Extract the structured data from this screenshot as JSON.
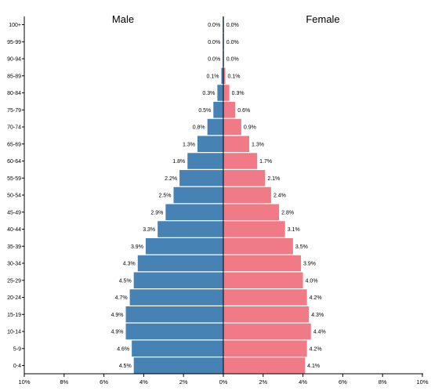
{
  "chart_data": {
    "type": "bar",
    "orientation": "horizontal-population-pyramid",
    "categories": [
      "0-4",
      "5-9",
      "10-14",
      "15-19",
      "20-24",
      "25-29",
      "30-34",
      "35-39",
      "40-44",
      "45-49",
      "50-54",
      "55-59",
      "60-64",
      "65-69",
      "70-74",
      "75-79",
      "80-84",
      "85-89",
      "90-94",
      "95-99",
      "100+"
    ],
    "series": [
      {
        "name": "Male",
        "color": "#4682b4",
        "values": [
          4.5,
          4.6,
          4.9,
          4.9,
          4.7,
          4.5,
          4.3,
          3.9,
          3.3,
          2.9,
          2.5,
          2.2,
          1.8,
          1.3,
          0.8,
          0.5,
          0.3,
          0.1,
          0.0,
          0.0,
          0.0
        ]
      },
      {
        "name": "Female",
        "color": "#f07b86",
        "values": [
          4.1,
          4.2,
          4.4,
          4.3,
          4.2,
          4.0,
          3.9,
          3.5,
          3.1,
          2.8,
          2.4,
          2.1,
          1.7,
          1.3,
          0.9,
          0.6,
          0.3,
          0.1,
          0.0,
          0.0,
          0.0
        ]
      }
    ],
    "value_labels": {
      "male": [
        "4.5%",
        "4.6%",
        "4.9%",
        "4.9%",
        "4.7%",
        "4.5%",
        "4.3%",
        "3.9%",
        "3.3%",
        "2.9%",
        "2.5%",
        "2.2%",
        "1.8%",
        "1.3%",
        "0.8%",
        "0.5%",
        "0.3%",
        "0.1%",
        "0.0%",
        "0.0%",
        "0.0%"
      ],
      "female": [
        "4.1%",
        "4.2%",
        "4.4%",
        "4.3%",
        "4.2%",
        "4.0%",
        "3.9%",
        "3.5%",
        "3.1%",
        "2.8%",
        "2.4%",
        "2.1%",
        "1.7%",
        "1.3%",
        "0.9%",
        "0.6%",
        "0.3%",
        "0.1%",
        "0.0%",
        "0.0%",
        "0.0%"
      ]
    },
    "x_ticks": {
      "values": [
        -10,
        -8,
        -6,
        -4,
        -2,
        0,
        2,
        4,
        6,
        8,
        10
      ],
      "labels": [
        "10%",
        "8%",
        "6%",
        "4%",
        "2%",
        "0%",
        "2%",
        "4%",
        "6%",
        "8%",
        "10%"
      ]
    },
    "xlim": [
      -10,
      10
    ],
    "legend": {
      "male_label": "Male",
      "female_label": "Female",
      "placement": "top"
    },
    "grid": false
  }
}
